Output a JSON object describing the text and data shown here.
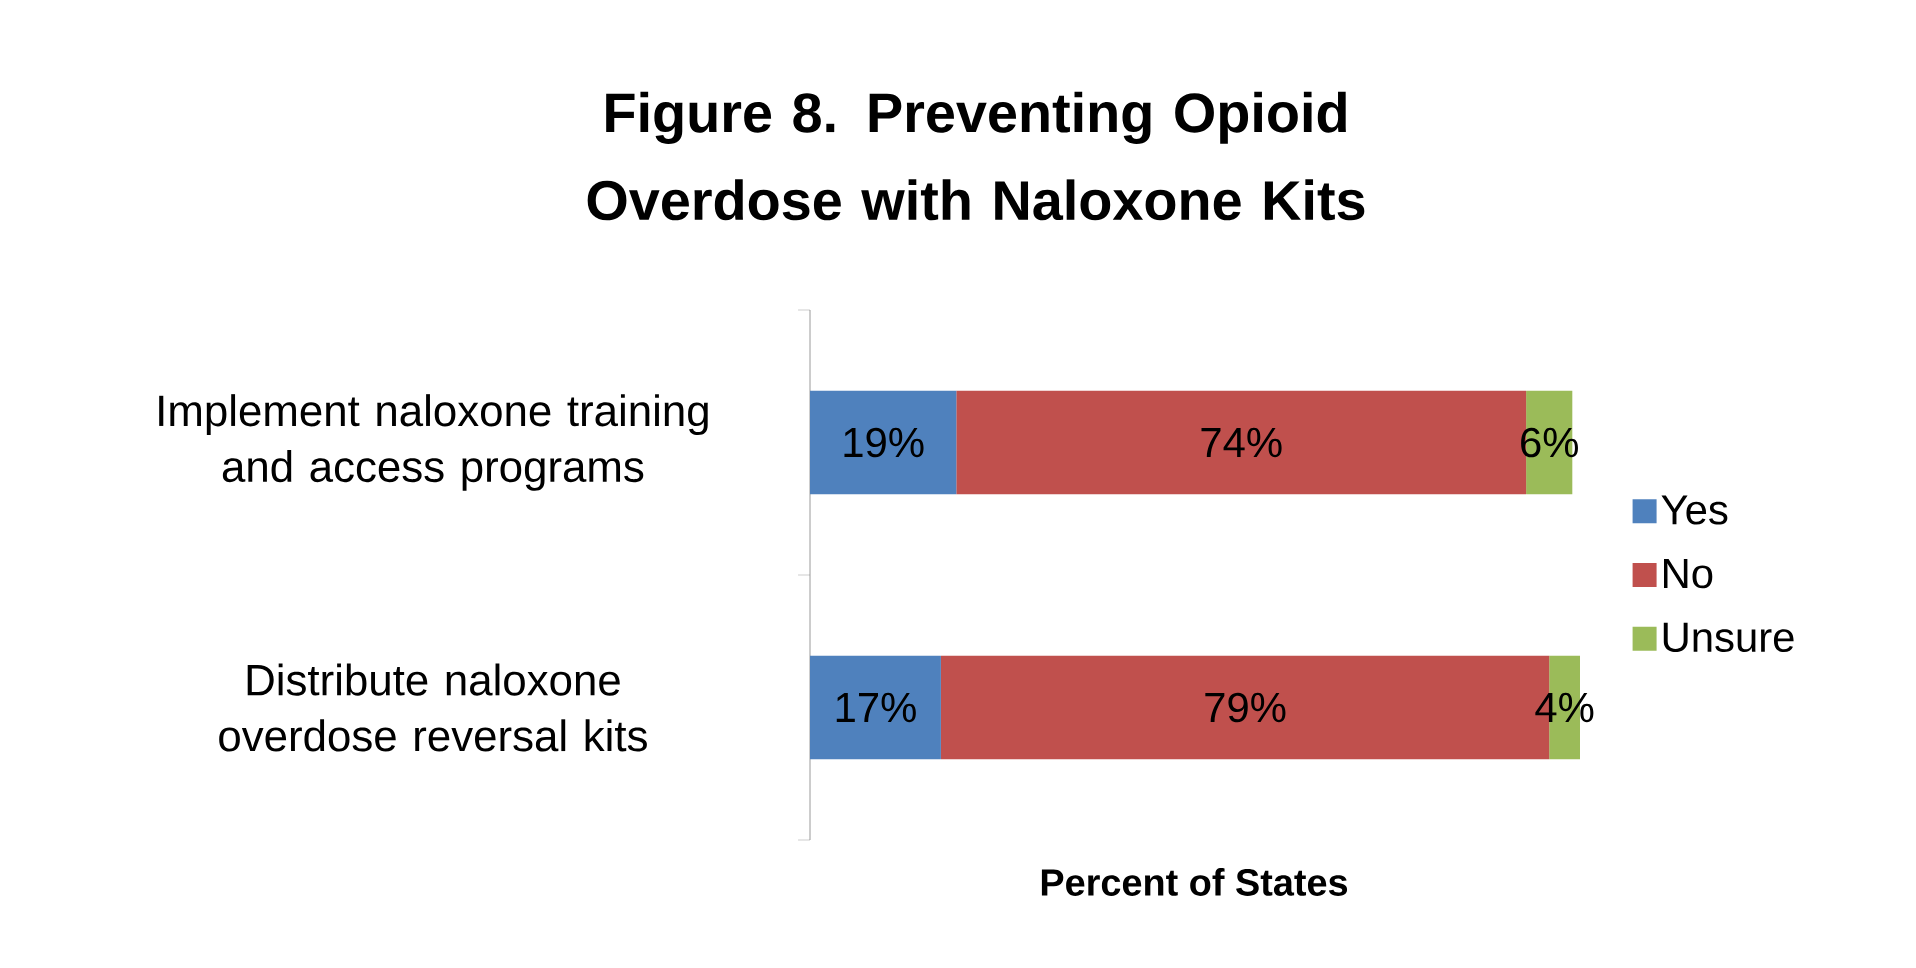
{
  "chart_data": {
    "type": "bar",
    "orientation": "horizontal",
    "stacked": true,
    "title": "Figure 8. Preventing Opioid Overdose with Naloxone Kits",
    "xlabel": "Percent of States",
    "categories": [
      "Implement naloxone training and access programs",
      "Distribute naloxone overdose reversal kits"
    ],
    "legend": "right",
    "series": [
      {
        "name": "Yes",
        "color": "#4f81bd",
        "values": [
          19,
          17
        ],
        "value_labels": [
          "19%",
          "17%"
        ]
      },
      {
        "name": "No",
        "color": "#c0504d",
        "values": [
          74,
          79
        ],
        "value_labels": [
          "74%",
          "79%"
        ]
      },
      {
        "name": "Unsure",
        "color": "#9bbb59",
        "values": [
          6,
          4
        ],
        "value_labels": [
          "6%",
          "4%"
        ]
      }
    ]
  }
}
